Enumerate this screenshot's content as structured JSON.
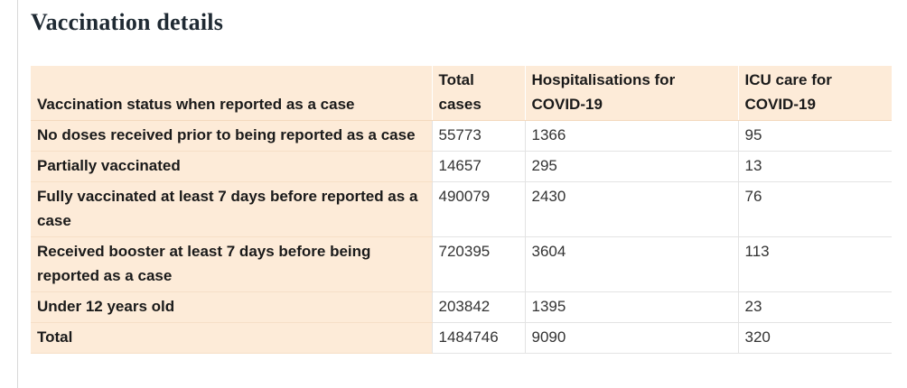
{
  "title": "Vaccination details",
  "table": {
    "headers": [
      "Vaccination status when reported as a case",
      "Total cases",
      "Hospitalisations for COVID-19",
      "ICU care for COVID-19"
    ],
    "rows": [
      {
        "status": "No doses received prior to being reported as a case",
        "total": "55773",
        "hosp": "1366",
        "icu": "95"
      },
      {
        "status": "Partially vaccinated",
        "total": "14657",
        "hosp": "295",
        "icu": "13"
      },
      {
        "status": "Fully vaccinated at least 7 days before reported as a case",
        "total": "490079",
        "hosp": "2430",
        "icu": "76"
      },
      {
        "status": "Received booster at least 7 days before being reported as a case",
        "total": "720395",
        "hosp": "3604",
        "icu": "113"
      },
      {
        "status": "Under 12 years old",
        "total": "203842",
        "hosp": "1395",
        "icu": "23"
      },
      {
        "status": "Total",
        "total": "1484746",
        "hosp": "9090",
        "icu": "320"
      }
    ]
  }
}
